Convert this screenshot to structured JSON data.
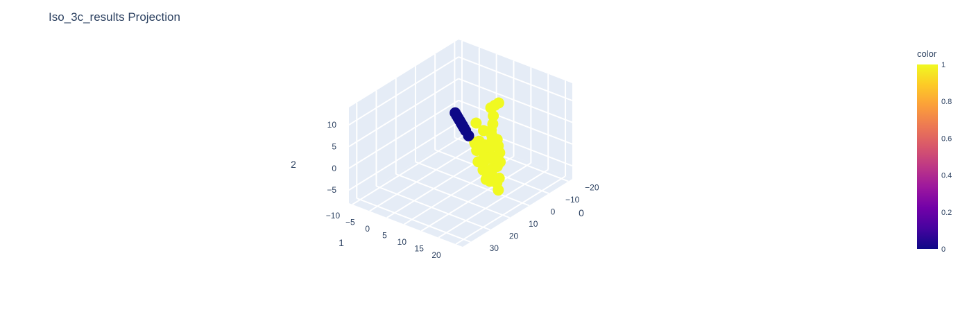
{
  "chart_data": {
    "type": "scatter",
    "title": "Iso_3c_results Projection",
    "axes": {
      "x": {
        "label": "0",
        "ticks": [
          "−20",
          "−10",
          "0",
          "10",
          "20",
          "30"
        ]
      },
      "y": {
        "label": "1",
        "ticks": [
          "−10",
          "−5",
          "0",
          "5",
          "10",
          "15",
          "20"
        ]
      },
      "z": {
        "label": "2",
        "ticks": [
          "−5",
          "0",
          "5",
          "10"
        ]
      }
    },
    "colorbar": {
      "title": "color",
      "ticks": [
        "0",
        "0.2",
        "0.4",
        "0.6",
        "0.8",
        "1"
      ],
      "range": [
        0,
        1
      ],
      "colors": [
        "#0d0887",
        "#46039f",
        "#7201a8",
        "#9c179e",
        "#bd3786",
        "#d8576b",
        "#ed7953",
        "#fb9f3a",
        "#fdca26",
        "#f0f921"
      ]
    },
    "series": [
      {
        "color_value": 0,
        "color": "#0d0887",
        "points": [
          [
            -15,
            -8,
            0
          ],
          [
            -14,
            -7,
            0
          ],
          [
            -13,
            -6,
            0
          ],
          [
            -12,
            -5,
            0
          ],
          [
            -11,
            -4,
            0
          ],
          [
            -10,
            -3,
            0
          ],
          [
            -9,
            -2,
            0
          ],
          [
            -8,
            -1,
            0
          ],
          [
            -6,
            1,
            0
          ]
        ]
      },
      {
        "color_value": 1,
        "color": "#f0f921",
        "points": [
          [
            -4,
            9,
            2
          ],
          [
            -2,
            12,
            12
          ],
          [
            0,
            12,
            12
          ],
          [
            2,
            12,
            12
          ],
          [
            -1,
            11,
            9
          ],
          [
            1,
            12,
            8
          ],
          [
            0,
            11,
            6
          ],
          [
            2,
            13,
            5
          ],
          [
            -2,
            10,
            4
          ],
          [
            -4,
            10,
            1
          ],
          [
            0,
            13,
            3
          ],
          [
            1,
            14,
            2
          ],
          [
            3,
            13,
            1
          ],
          [
            4,
            15,
            0
          ],
          [
            5,
            14,
            -1
          ],
          [
            6,
            15,
            -2
          ],
          [
            6,
            16,
            -3
          ],
          [
            7,
            17,
            -4
          ],
          [
            2,
            11,
            0
          ],
          [
            3,
            12,
            2
          ],
          [
            6,
            13,
            4
          ],
          [
            8,
            12,
            6
          ],
          [
            10,
            12,
            6
          ],
          [
            11,
            13,
            5
          ],
          [
            5,
            9,
            4
          ],
          [
            0,
            9,
            2
          ],
          [
            -2,
            9,
            1
          ],
          [
            1,
            10,
            0
          ],
          [
            2,
            10,
            -1
          ],
          [
            4,
            12,
            -2
          ],
          [
            7,
            14,
            3
          ],
          [
            9,
            14,
            4
          ],
          [
            12,
            14,
            3
          ],
          [
            13,
            16,
            2
          ],
          [
            15,
            18,
            1
          ],
          [
            13,
            18,
            0
          ],
          [
            11,
            17,
            1
          ],
          [
            8,
            16,
            1
          ],
          [
            3,
            15,
            -3
          ],
          [
            -1,
            13,
            -1
          ],
          [
            -3,
            11,
            3
          ],
          [
            4,
            11,
            7
          ],
          [
            6,
            10,
            9
          ]
        ]
      }
    ]
  }
}
